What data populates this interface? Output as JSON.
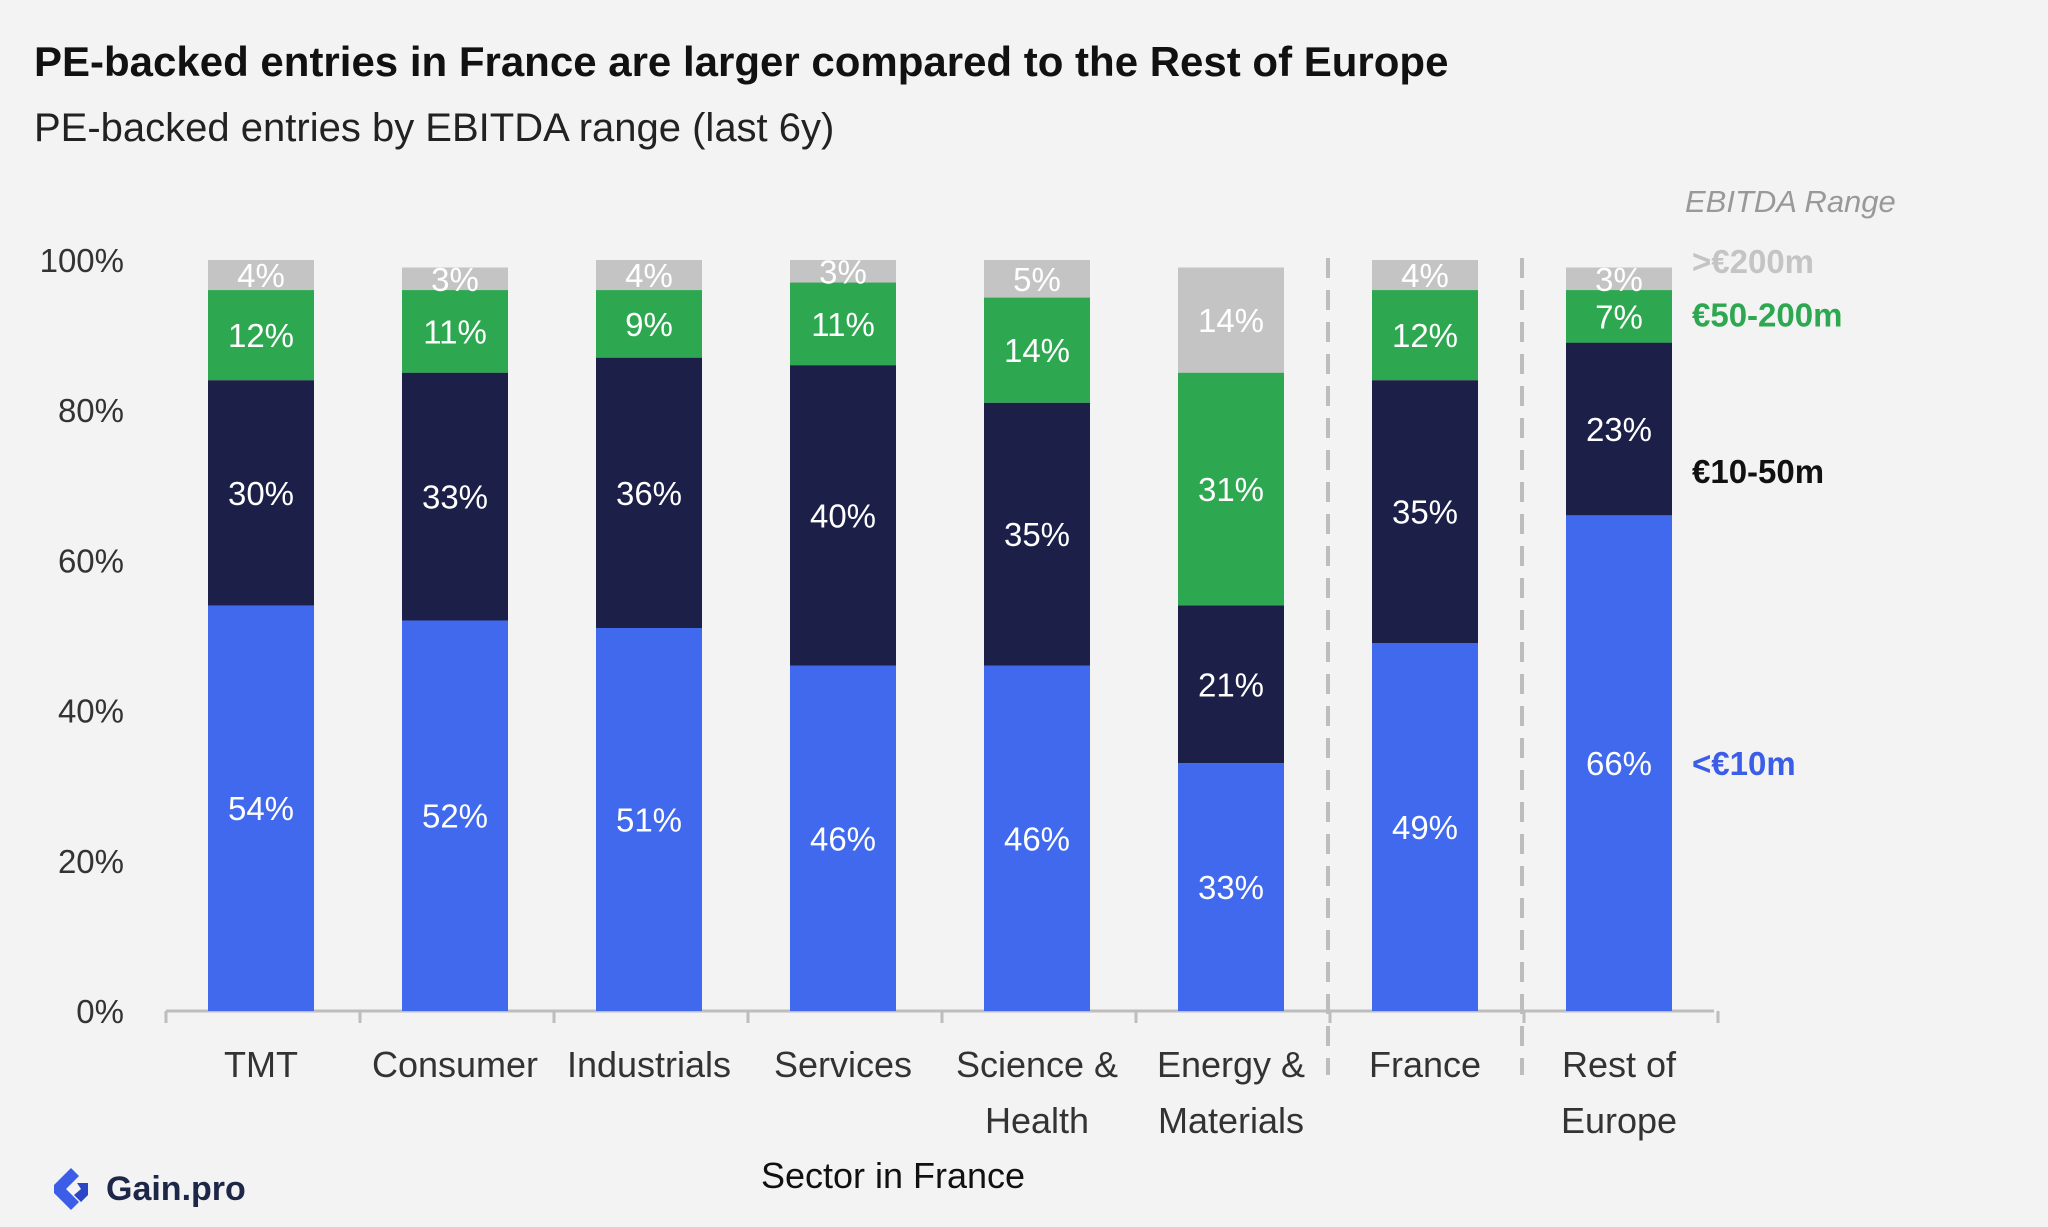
{
  "header": {
    "title": "PE-backed entries in France are larger compared to the Rest of Europe",
    "subtitle": "PE-backed entries by EBITDA range (last 6y)"
  },
  "brand": {
    "name": "Gain.pro",
    "icon": "gain-pro-logo-icon",
    "color": "#3b5de7"
  },
  "chart_data": {
    "type": "bar",
    "stacked": true,
    "xlabel": "Sector in France",
    "ylabel": "",
    "ylim": [
      0,
      100
    ],
    "y_ticks": [
      "0%",
      "20%",
      "40%",
      "60%",
      "80%",
      "100%"
    ],
    "y_tick_values": [
      0,
      20,
      40,
      60,
      80,
      100
    ],
    "categories": [
      [
        "TMT"
      ],
      [
        "Consumer"
      ],
      [
        "Industrials"
      ],
      [
        "Services"
      ],
      [
        "Science &",
        "Health"
      ],
      [
        "Energy &",
        "Materials"
      ],
      [
        "France"
      ],
      [
        "Rest of",
        "Europe"
      ]
    ],
    "dividers_after_category_index": [
      5,
      6
    ],
    "legend_title": "EBITDA Range",
    "legend_position": "right",
    "grid": false,
    "series": [
      {
        "name": "<€10m",
        "color": "#4169ee",
        "text_color": "#ffffff",
        "legend_color": "#3b5de7",
        "values": [
          54,
          52,
          51,
          46,
          46,
          33,
          49,
          66
        ],
        "labels": [
          "54%",
          "52%",
          "51%",
          "46%",
          "46%",
          "33%",
          "49%",
          "66%"
        ]
      },
      {
        "name": "€10-50m",
        "color": "#1c1f48",
        "text_color": "#ffffff",
        "legend_color": "#111111",
        "values": [
          30,
          33,
          36,
          40,
          35,
          21,
          35,
          23
        ],
        "labels": [
          "30%",
          "33%",
          "36%",
          "40%",
          "35%",
          "21%",
          "35%",
          "23%"
        ]
      },
      {
        "name": "€50-200m",
        "color": "#2ea850",
        "text_color": "#ffffff",
        "legend_color": "#2ea850",
        "values": [
          12,
          11,
          9,
          11,
          14,
          31,
          12,
          7
        ],
        "labels": [
          "12%",
          "11%",
          "9%",
          "11%",
          "14%",
          "31%",
          "12%",
          "7%"
        ]
      },
      {
        "name": ">€200m",
        "color": "#c4c4c4",
        "text_color": "#ffffff",
        "legend_color": "#c4c4c4",
        "values": [
          4,
          3,
          4,
          3,
          5,
          14,
          4,
          3
        ],
        "labels": [
          "4%",
          "3%",
          "4%",
          "3%",
          "5%",
          "14%",
          "4%",
          "3%"
        ]
      }
    ]
  }
}
